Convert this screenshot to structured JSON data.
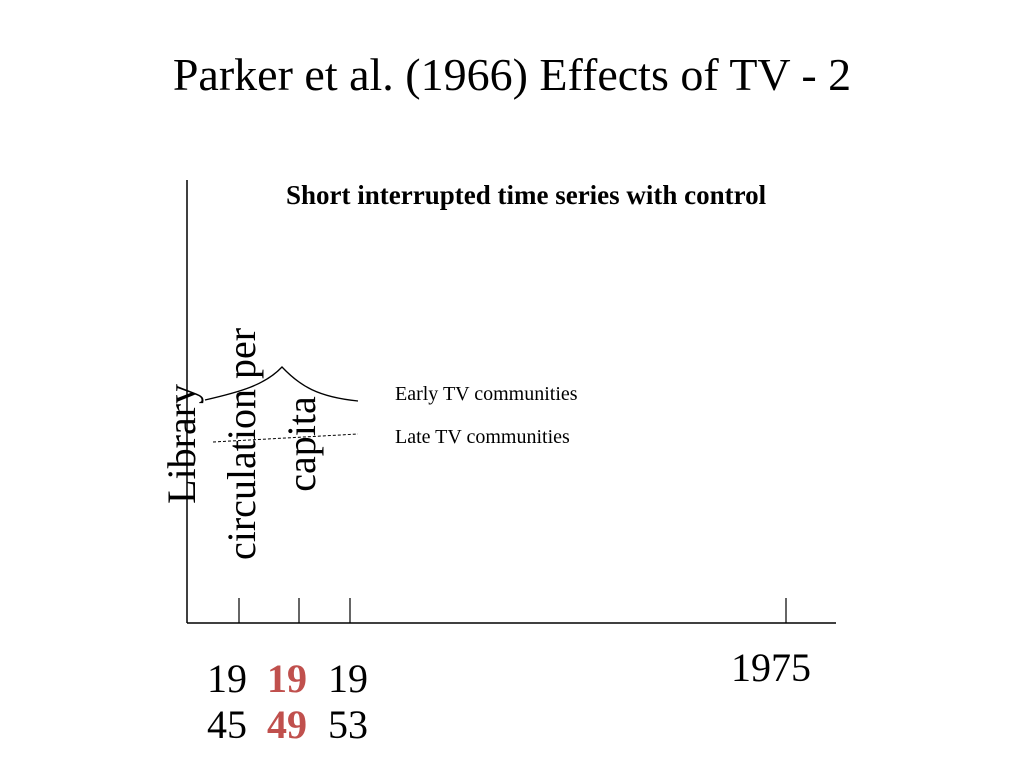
{
  "title": "Parker et al. (1966) Effects of TV - 2",
  "subtitle": "Short interrupted time series with control",
  "y_axis_label": [
    "Library",
    "circulation per",
    "capita"
  ],
  "legend": {
    "early": "Early TV communities",
    "late": "Late TV communities"
  },
  "x_ticks": [
    {
      "top": "19",
      "bottom": "45",
      "highlight": false
    },
    {
      "top": "19",
      "bottom": "49",
      "highlight": true
    },
    {
      "top": "19",
      "bottom": "53",
      "highlight": false
    }
  ],
  "x_end_tick": "1975",
  "colors": {
    "highlight": "#c0504d",
    "axis": "#000000"
  }
}
